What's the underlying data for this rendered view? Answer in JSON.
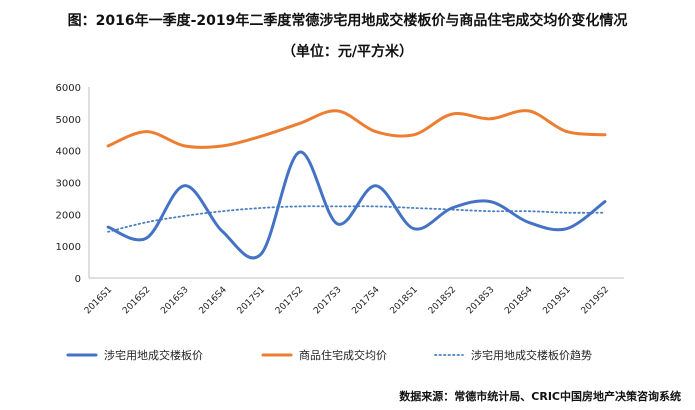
{
  "title": "图：2016年一季度-2019年二季度常德涉宅用地成交楼板价与商品住宅成交均价变化情况",
  "subtitle": "（单位：元/平方米）",
  "source": "数据来源：常德市统计局、CRIC中国房地产决策咨询系统",
  "chart_data": {
    "type": "line",
    "categories": [
      "2016S1",
      "2016S2",
      "2016S3",
      "2016S4",
      "2017S1",
      "2017S2",
      "2017S3",
      "2017S4",
      "2018S1",
      "2018S2",
      "2018S3",
      "2018S4",
      "2019S1",
      "2019S2"
    ],
    "ylim": [
      0,
      6000
    ],
    "yticks": [
      0,
      1000,
      2000,
      3000,
      4000,
      5000,
      6000
    ],
    "grid": false,
    "legend_position": "bottom",
    "series": [
      {
        "name": "涉宅用地成交楼板价",
        "color": "#4472c4",
        "values": [
          1600,
          1250,
          2900,
          1450,
          750,
          3950,
          1700,
          2900,
          1550,
          2200,
          2400,
          1750,
          1550,
          2400
        ]
      },
      {
        "name": "商品住宅成交均价",
        "color": "#ed7d31",
        "values": [
          4150,
          4600,
          4150,
          4150,
          4450,
          4850,
          5250,
          4600,
          4500,
          5150,
          5000,
          5250,
          4600,
          4500
        ]
      },
      {
        "name": "涉宅用地成交楼板价趋势",
        "color": "#4a7fc1",
        "style": "dotted",
        "values": [
          1450,
          1750,
          1950,
          2100,
          2200,
          2250,
          2250,
          2250,
          2200,
          2150,
          2100,
          2100,
          2050,
          2050
        ]
      }
    ]
  }
}
